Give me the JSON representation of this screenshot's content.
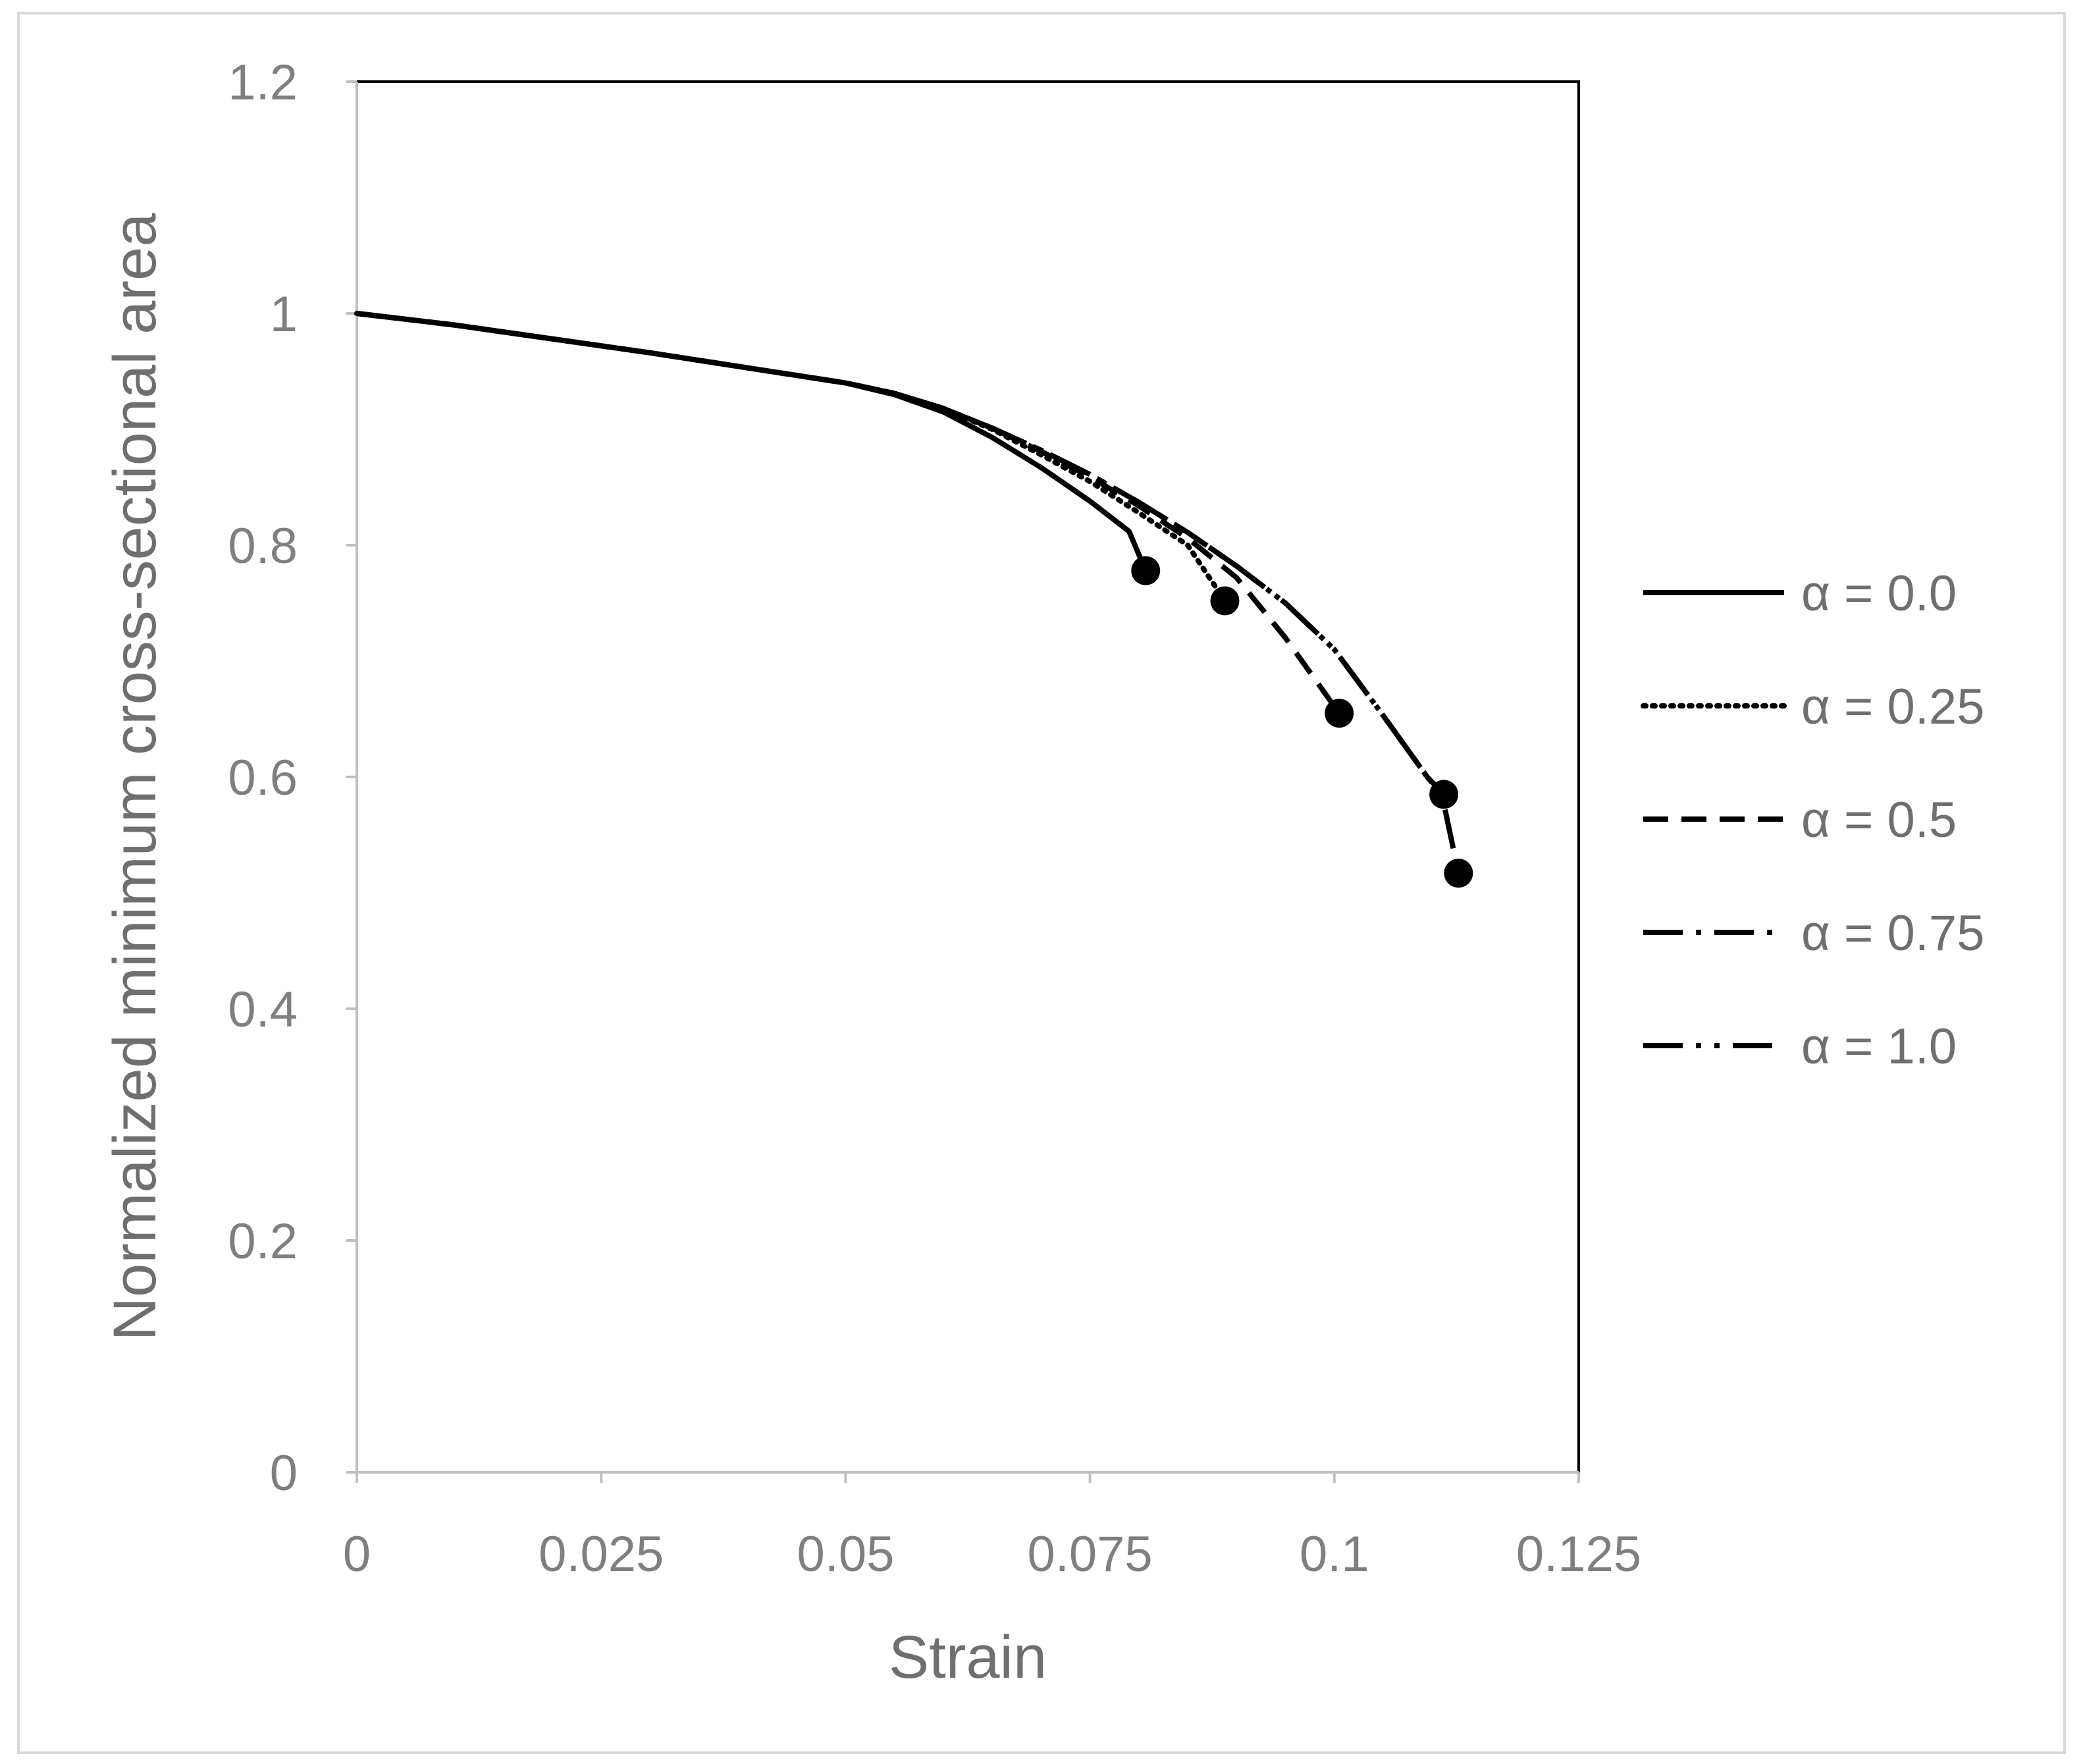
{
  "chart_data": {
    "type": "line",
    "xlabel": "Strain",
    "ylabel": "Normalized minimum cross-sectional area",
    "xlim": [
      0,
      0.125
    ],
    "ylim": [
      0,
      1.2
    ],
    "x_ticks": [
      "0",
      "0.025",
      "0.05",
      "0.075",
      "0.1",
      "0.125"
    ],
    "y_ticks": [
      "0",
      "0.2",
      "0.4",
      "0.6",
      "0.8",
      "1",
      "1.2"
    ],
    "grid": false,
    "legend_position": "right",
    "line_color": "#000000",
    "axis_color": "#bfbfbf",
    "series": [
      {
        "name": "α = 0.0",
        "style": "solid",
        "x": [
          0,
          0.01,
          0.02,
          0.03,
          0.04,
          0.05,
          0.055,
          0.06,
          0.065,
          0.07,
          0.075,
          0.079,
          0.0807
        ],
        "y": [
          1.0,
          0.99,
          0.978,
          0.966,
          0.953,
          0.94,
          0.93,
          0.915,
          0.893,
          0.867,
          0.838,
          0.812,
          0.778
        ],
        "end_marker": true
      },
      {
        "name": "α = 0.25",
        "style": "dotted",
        "x": [
          0,
          0.01,
          0.02,
          0.03,
          0.04,
          0.05,
          0.055,
          0.06,
          0.065,
          0.07,
          0.075,
          0.08,
          0.085,
          0.0888
        ],
        "y": [
          1.0,
          0.99,
          0.978,
          0.966,
          0.953,
          0.94,
          0.931,
          0.918,
          0.9,
          0.878,
          0.855,
          0.828,
          0.8,
          0.752
        ],
        "end_marker": true
      },
      {
        "name": "α = 0.5",
        "style": "dashed",
        "x": [
          0,
          0.01,
          0.02,
          0.03,
          0.04,
          0.05,
          0.055,
          0.06,
          0.065,
          0.07,
          0.075,
          0.08,
          0.085,
          0.09,
          0.095,
          0.1005
        ],
        "y": [
          1.0,
          0.99,
          0.978,
          0.966,
          0.953,
          0.94,
          0.931,
          0.918,
          0.901,
          0.881,
          0.859,
          0.834,
          0.806,
          0.772,
          0.72,
          0.655
        ],
        "end_marker": true
      },
      {
        "name": "α = 0.75",
        "style": "dash-dot",
        "x": [
          0,
          0.01,
          0.02,
          0.03,
          0.04,
          0.05,
          0.055,
          0.06,
          0.065,
          0.07,
          0.075,
          0.08,
          0.085,
          0.09,
          0.095,
          0.1,
          0.105,
          0.1095,
          0.1112
        ],
        "y": [
          1.0,
          0.99,
          0.978,
          0.966,
          0.953,
          0.94,
          0.931,
          0.918,
          0.901,
          0.882,
          0.861,
          0.837,
          0.811,
          0.782,
          0.75,
          0.71,
          0.653,
          0.6,
          0.585
        ],
        "end_marker": true
      },
      {
        "name": "α = 1.0",
        "style": "dash-dot-dot",
        "x": [
          0,
          0.01,
          0.02,
          0.03,
          0.04,
          0.05,
          0.055,
          0.06,
          0.065,
          0.07,
          0.075,
          0.08,
          0.085,
          0.09,
          0.095,
          0.1,
          0.105,
          0.1095,
          0.111,
          0.1127
        ],
        "y": [
          1.0,
          0.99,
          0.978,
          0.966,
          0.953,
          0.94,
          0.931,
          0.918,
          0.901,
          0.882,
          0.861,
          0.837,
          0.811,
          0.782,
          0.75,
          0.71,
          0.653,
          0.6,
          0.585,
          0.517
        ],
        "end_marker": true
      }
    ]
  }
}
